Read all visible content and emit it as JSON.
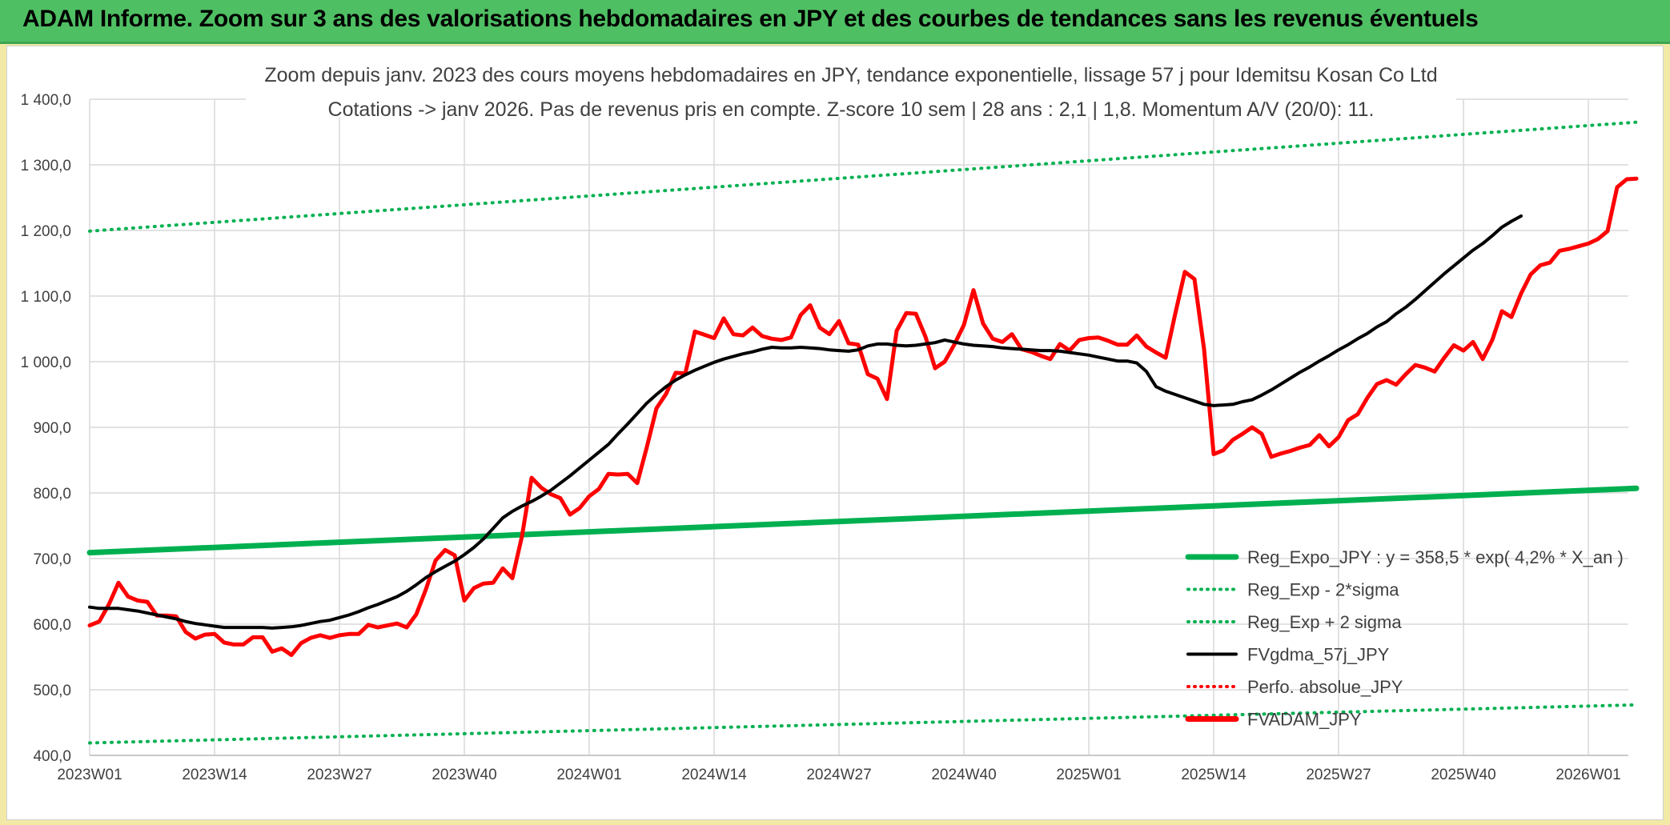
{
  "banner": {
    "title": "ADAM Informe. Zoom sur 3 ans des valorisations hebdomadaires en JPY et des courbes de tendances sans les revenus éventuels"
  },
  "colors": {
    "banner": "#4fbf63",
    "background": "#f2e9a6",
    "trend": "#00b050",
    "price": "#ff0000",
    "gdma": "#000000"
  },
  "chart_data": {
    "type": "line",
    "subtitle_line1": "Zoom depuis janv. 2023 des cours moyens hebdomadaires en JPY, tendance exponentielle, lissage 57 j pour Idemitsu Kosan Co Ltd",
    "subtitle_line2": "Cotations -> janv 2026. Pas de revenus pris en compte. Z-score 10 sem | 28 ans : 2,1 | 1,8. Momentum A/V (20/0): 11.",
    "xlabel": "",
    "ylabel": "",
    "ylim": [
      400,
      1400
    ],
    "y_ticks": [
      "1 400,0",
      "1 300,0",
      "1 200,0",
      "1 100,0",
      "1 000,0",
      "900,0",
      "800,0",
      "700,0",
      "600,0",
      "500,0",
      "400,0"
    ],
    "x_ticks": [
      "2023W01",
      "2023W14",
      "2023W27",
      "2023W40",
      "2024W01",
      "2024W14",
      "2024W27",
      "2024W40",
      "2025W01",
      "2025W14",
      "2025W27",
      "2025W40",
      "2026W01"
    ],
    "weeks_between_ticks": 13,
    "grid": true,
    "legend_position": "right-center",
    "legend": [
      {
        "label": "Reg_Expo_JPY : y = 358,5 * exp( 4,2% *  X_an )",
        "style": "solid-thick",
        "color": "#00b050"
      },
      {
        "label": "Reg_Exp - 2*sigma",
        "style": "dotted",
        "color": "#00b050"
      },
      {
        "label": "Reg_Exp + 2 sigma",
        "style": "dotted",
        "color": "#00b050"
      },
      {
        "label": "FVgdma_57j_JPY",
        "style": "solid",
        "color": "#000000"
      },
      {
        "label": "Perfo. absolue_JPY",
        "style": "dotted",
        "color": "#ff0000"
      },
      {
        "label": "FVADAM_JPY",
        "style": "solid-thick",
        "color": "#ff0000"
      }
    ],
    "series": [
      {
        "name": "Reg_Expo_JPY : y = 358,5 * exp( 4,2% *  X_an )",
        "start": 709,
        "end": 807
      },
      {
        "name": "Reg_Exp - 2*sigma",
        "start": 419,
        "end": 477
      },
      {
        "name": "Reg_Exp + 2 sigma",
        "start": 1199,
        "end": 1365
      },
      {
        "name": "FVgdma_57j_JPY",
        "values": [
          626,
          624,
          624,
          624,
          622,
          620,
          617,
          614,
          611,
          608,
          604,
          601,
          599,
          597,
          595,
          595,
          595,
          595,
          595,
          594,
          595,
          596,
          598,
          601,
          604,
          606,
          610,
          614,
          619,
          625,
          630,
          636,
          642,
          650,
          660,
          671,
          680,
          688,
          696,
          706,
          717,
          730,
          746,
          762,
          772,
          780,
          787,
          795,
          804,
          815,
          826,
          838,
          850,
          862,
          874,
          890,
          905,
          921,
          937,
          950,
          962,
          972,
          980,
          987,
          993,
          999,
          1004,
          1008,
          1012,
          1015,
          1019,
          1022,
          1021,
          1021,
          1022,
          1021,
          1020,
          1018,
          1017,
          1016,
          1018,
          1024,
          1027,
          1027,
          1025,
          1024,
          1025,
          1027,
          1029,
          1033,
          1030,
          1027,
          1025,
          1024,
          1023,
          1021,
          1020,
          1019,
          1018,
          1017,
          1017,
          1016,
          1014,
          1012,
          1010,
          1007,
          1004,
          1001,
          1001,
          998,
          985,
          962,
          955,
          950,
          945,
          940,
          935,
          933,
          934,
          935,
          939,
          942,
          949,
          957,
          966,
          975,
          984,
          992,
          1001,
          1009,
          1018,
          1026,
          1035,
          1043,
          1053,
          1061,
          1073,
          1083,
          1095,
          1108,
          1121,
          1134,
          1146,
          1158,
          1170,
          1180,
          1192,
          1205,
          1214,
          1222
        ]
      },
      {
        "name": "FVADAM_JPY",
        "values": [
          598,
          604,
          630,
          663,
          642,
          636,
          634,
          613,
          613,
          612,
          588,
          578,
          584,
          585,
          572,
          569,
          569,
          580,
          580,
          558,
          563,
          553,
          571,
          579,
          583,
          579,
          583,
          585,
          585,
          599,
          595,
          598,
          601,
          595,
          615,
          653,
          697,
          713,
          705,
          636,
          655,
          662,
          663,
          685,
          670,
          734,
          823,
          808,
          798,
          792,
          767,
          777,
          795,
          806,
          829,
          828,
          829,
          815,
          870,
          929,
          951,
          983,
          982,
          1046,
          1041,
          1036,
          1066,
          1042,
          1040,
          1052,
          1039,
          1035,
          1033,
          1037,
          1071,
          1086,
          1052,
          1042,
          1062,
          1028,
          1026,
          981,
          974,
          943,
          1047,
          1074,
          1073,
          1038,
          990,
          1000,
          1026,
          1056,
          1109,
          1058,
          1035,
          1030,
          1042,
          1019,
          1015,
          1009,
          1004,
          1027,
          1017,
          1033,
          1036,
          1037,
          1032,
          1026,
          1026,
          1040,
          1023,
          1014,
          1006,
          1073,
          1137,
          1126,
          1019,
          859,
          865,
          881,
          890,
          900,
          890,
          855,
          860,
          864,
          869,
          873,
          888,
          871,
          885,
          911,
          920,
          945,
          966,
          972,
          965,
          981,
          995,
          991,
          985,
          1006,
          1025,
          1017,
          1030,
          1004,
          1033,
          1077,
          1068,
          1104,
          1133,
          1147,
          1151,
          1169,
          1172,
          1176,
          1180,
          1187,
          1199,
          1266,
          1278,
          1279
        ]
      }
    ]
  }
}
